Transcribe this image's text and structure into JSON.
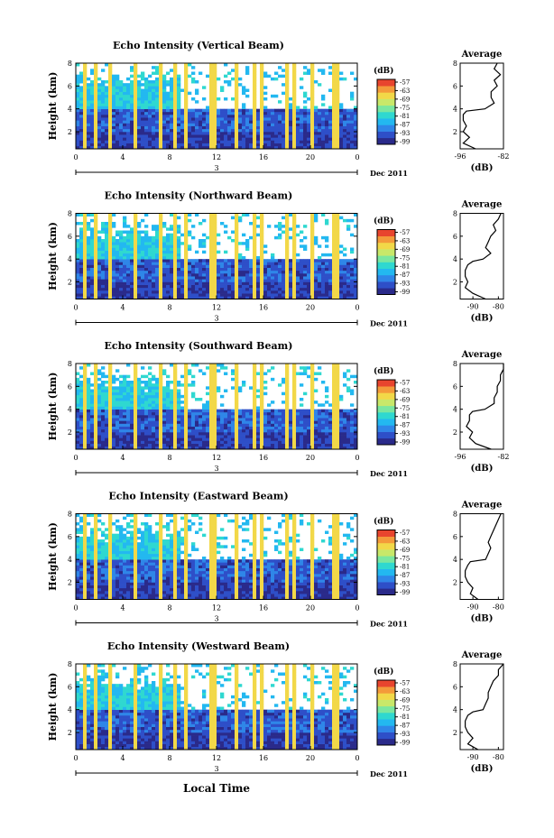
{
  "figure": {
    "xlabel_global": "Local Time",
    "date_label": "Dec 2011",
    "colorbar_unit": "(dB)",
    "colorbar_ticks": [
      "-57",
      "-63",
      "-69",
      "-75",
      "-81",
      "-87",
      "-93",
      "-99"
    ],
    "colormap": [
      "#2a2a8a",
      "#2e4fc8",
      "#2f86e8",
      "#23b8f0",
      "#2fd8d0",
      "#7ae7a0",
      "#c8e86a",
      "#f2d848",
      "#f49a3a",
      "#e8452e"
    ],
    "x_ticks": [
      "0",
      "4",
      "8",
      "12",
      "16",
      "20",
      "0"
    ],
    "date_tick": "3",
    "y_ticks": [
      "2",
      "4",
      "6",
      "8"
    ],
    "ylabel": "Height (km)",
    "avg_title": "Average",
    "avg_xlabel": "(dB)"
  },
  "chart_data": [
    {
      "type": "heatmap",
      "title": "Echo Intensity (Vertical Beam)",
      "xlabel": "",
      "ylabel": "Height (km)",
      "xlim": [
        0,
        24
      ],
      "ylim": [
        0.5,
        8
      ],
      "zlim": [
        -99,
        -57
      ],
      "bands": [
        {
          "from": 0,
          "to": 2,
          "value": -95
        },
        {
          "from": 2,
          "to": 3.9,
          "value": -92
        },
        {
          "from": 3.9,
          "to": 8,
          "value": -82
        }
      ],
      "average_profile": {
        "xlim": [
          -96,
          -82
        ],
        "xticks": [
          "-96",
          "-82"
        ],
        "height": [
          0.5,
          1.0,
          1.5,
          2.0,
          2.5,
          3.0,
          3.5,
          3.8,
          4.0,
          4.5,
          5.0,
          5.5,
          6.0,
          6.5,
          7.0,
          7.5,
          8.0
        ],
        "db": [
          -91,
          -95,
          -93,
          -95,
          -94,
          -95,
          -95,
          -94,
          -88,
          -85,
          -86,
          -86,
          -84,
          -85,
          -83,
          -85,
          -84
        ]
      }
    },
    {
      "type": "heatmap",
      "title": "Echo Intensity (Northward Beam)",
      "xlabel": "",
      "ylabel": "Height (km)",
      "xlim": [
        0,
        24
      ],
      "ylim": [
        0.5,
        8
      ],
      "zlim": [
        -99,
        -57
      ],
      "bands": [
        {
          "from": 0,
          "to": 2,
          "value": -95
        },
        {
          "from": 2,
          "to": 3.9,
          "value": -92
        },
        {
          "from": 3.9,
          "to": 8,
          "value": -82
        }
      ],
      "average_profile": {
        "xlim": [
          -95,
          -78
        ],
        "xticks": [
          "-90",
          "-80"
        ],
        "height": [
          0.5,
          1.0,
          1.5,
          2.0,
          2.5,
          3.0,
          3.5,
          3.8,
          4.0,
          4.5,
          5.0,
          5.5,
          6.0,
          6.5,
          7.0,
          7.5,
          8.0
        ],
        "db": [
          -85,
          -90,
          -93,
          -92,
          -93,
          -93,
          -92,
          -90,
          -86,
          -83,
          -85,
          -84,
          -83,
          -81,
          -82,
          -80,
          -79
        ]
      }
    },
    {
      "type": "heatmap",
      "title": "Echo Intensity (Southward Beam)",
      "xlabel": "",
      "ylabel": "Height (km)",
      "xlim": [
        0,
        24
      ],
      "ylim": [
        0.5,
        8
      ],
      "zlim": [
        -99,
        -57
      ],
      "bands": [
        {
          "from": 0,
          "to": 2,
          "value": -95
        },
        {
          "from": 2,
          "to": 3.9,
          "value": -92
        },
        {
          "from": 3.9,
          "to": 8,
          "value": -82
        }
      ],
      "average_profile": {
        "xlim": [
          -96,
          -82
        ],
        "xticks": [
          "-96",
          "-82"
        ],
        "height": [
          0.5,
          1.0,
          1.5,
          2.0,
          2.5,
          3.0,
          3.5,
          3.8,
          4.0,
          4.5,
          5.0,
          5.5,
          6.0,
          6.5,
          7.0,
          7.5,
          8.0
        ],
        "db": [
          -86,
          -91,
          -93,
          -92,
          -94,
          -93,
          -93,
          -92,
          -88,
          -85,
          -85,
          -84,
          -84,
          -83,
          -83,
          -82,
          -82
        ]
      }
    },
    {
      "type": "heatmap",
      "title": "Echo Intensity (Eastward Beam)",
      "xlabel": "",
      "ylabel": "Height (km)",
      "xlim": [
        0,
        24
      ],
      "ylim": [
        0.5,
        8
      ],
      "zlim": [
        -99,
        -57
      ],
      "bands": [
        {
          "from": 0,
          "to": 2,
          "value": -95
        },
        {
          "from": 2,
          "to": 3.9,
          "value": -92
        },
        {
          "from": 3.9,
          "to": 8,
          "value": -82
        }
      ],
      "average_profile": {
        "xlim": [
          -95,
          -78
        ],
        "xticks": [
          "-90",
          "-80"
        ],
        "height": [
          0.5,
          1.0,
          1.5,
          2.0,
          2.5,
          3.0,
          3.5,
          3.8,
          4.0,
          4.5,
          5.0,
          5.5,
          6.0,
          6.5,
          7.0,
          7.5,
          8.0
        ],
        "db": [
          -88,
          -91,
          -90,
          -92,
          -93,
          -93,
          -92,
          -91,
          -85,
          -84,
          -83,
          -84,
          -83,
          -82,
          -81,
          -80,
          -79
        ]
      }
    },
    {
      "type": "heatmap",
      "title": "Echo Intensity (Westward Beam)",
      "xlabel": "",
      "ylabel": "Height (km)",
      "xlim": [
        0,
        24
      ],
      "ylim": [
        0.5,
        8
      ],
      "zlim": [
        -99,
        -57
      ],
      "bands": [
        {
          "from": 0,
          "to": 2,
          "value": -95
        },
        {
          "from": 2,
          "to": 3.9,
          "value": -92
        },
        {
          "from": 3.9,
          "to": 8,
          "value": -82
        }
      ],
      "average_profile": {
        "xlim": [
          -95,
          -78
        ],
        "xticks": [
          "-90",
          "-80"
        ],
        "height": [
          0.5,
          1.0,
          1.5,
          2.0,
          2.5,
          3.0,
          3.5,
          3.8,
          4.0,
          4.5,
          5.0,
          5.5,
          6.0,
          6.5,
          7.0,
          7.5,
          8.0
        ],
        "db": [
          -88,
          -92,
          -90,
          -92,
          -93,
          -93,
          -92,
          -90,
          -86,
          -85,
          -84,
          -84,
          -83,
          -82,
          -80,
          -80,
          -78
        ]
      }
    }
  ]
}
